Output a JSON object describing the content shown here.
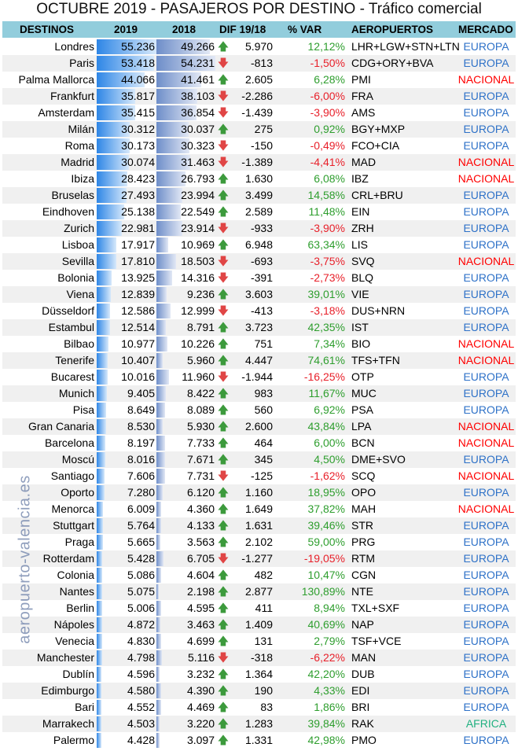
{
  "title": "OCTUBRE 2019 - PASAJEROS POR DESTINO - Tráfico comercial",
  "watermark": "aeropuerto-valencia.es",
  "headers": {
    "dest": "DESTINOS",
    "y2019": "2019",
    "y2018": "2018",
    "dif": "DIF 19/18",
    "pct": "% VAR",
    "apt": "AEROPUERTOS",
    "mkt": "MERCADO"
  },
  "colors": {
    "header_bg": "#92cddc",
    "positive": "#2e9e2e",
    "negative": "#e8202a",
    "europa": "#2f72c8",
    "nacional": "#ff0000",
    "africa": "#20b080"
  },
  "rows": [
    [
      "Londres",
      "55.236",
      "49.266",
      "5.970",
      "12,12%",
      "LHR+LGW+STN+LTN",
      "EUROPA"
    ],
    [
      "Paris",
      "53.418",
      "54.231",
      "-813",
      "-1,50%",
      "CDG+ORY+BVA",
      "EUROPA"
    ],
    [
      "Palma Mallorca",
      "44.066",
      "41.461",
      "2.605",
      "6,28%",
      "PMI",
      "NACIONAL"
    ],
    [
      "Frankfurt",
      "35.817",
      "38.103",
      "-2.286",
      "-6,00%",
      "FRA",
      "EUROPA"
    ],
    [
      "Amsterdam",
      "35.415",
      "36.854",
      "-1.439",
      "-3,90%",
      "AMS",
      "EUROPA"
    ],
    [
      "Milán",
      "30.312",
      "30.037",
      "275",
      "0,92%",
      "BGY+MXP",
      "EUROPA"
    ],
    [
      "Roma",
      "30.173",
      "30.323",
      "-150",
      "-0,49%",
      "FCO+CIA",
      "EUROPA"
    ],
    [
      "Madrid",
      "30.074",
      "31.463",
      "-1.389",
      "-4,41%",
      "MAD",
      "NACIONAL"
    ],
    [
      "Ibiza",
      "28.423",
      "26.793",
      "1.630",
      "6,08%",
      "IBZ",
      "NACIONAL"
    ],
    [
      "Bruselas",
      "27.493",
      "23.994",
      "3.499",
      "14,58%",
      "CRL+BRU",
      "EUROPA"
    ],
    [
      "Eindhoven",
      "25.138",
      "22.549",
      "2.589",
      "11,48%",
      "EIN",
      "EUROPA"
    ],
    [
      "Zurich",
      "22.981",
      "23.914",
      "-933",
      "-3,90%",
      "ZRH",
      "EUROPA"
    ],
    [
      "Lisboa",
      "17.917",
      "10.969",
      "6.948",
      "63,34%",
      "LIS",
      "EUROPA"
    ],
    [
      "Sevilla",
      "17.810",
      "18.503",
      "-693",
      "-3,75%",
      "SVQ",
      "NACIONAL"
    ],
    [
      "Bolonia",
      "13.925",
      "14.316",
      "-391",
      "-2,73%",
      "BLQ",
      "EUROPA"
    ],
    [
      "Viena",
      "12.839",
      "9.236",
      "3.603",
      "39,01%",
      "VIE",
      "EUROPA"
    ],
    [
      "Düsseldorf",
      "12.586",
      "12.999",
      "-413",
      "-3,18%",
      "DUS+NRN",
      "EUROPA"
    ],
    [
      "Estambul",
      "12.514",
      "8.791",
      "3.723",
      "42,35%",
      "IST",
      "EUROPA"
    ],
    [
      "Bilbao",
      "10.977",
      "10.226",
      "751",
      "7,34%",
      "BIO",
      "NACIONAL"
    ],
    [
      "Tenerife",
      "10.407",
      "5.960",
      "4.447",
      "74,61%",
      "TFS+TFN",
      "NACIONAL"
    ],
    [
      "Bucarest",
      "10.016",
      "11.960",
      "-1.944",
      "-16,25%",
      "OTP",
      "EUROPA"
    ],
    [
      "Munich",
      "9.405",
      "8.422",
      "983",
      "11,67%",
      "MUC",
      "EUROPA"
    ],
    [
      "Pisa",
      "8.649",
      "8.089",
      "560",
      "6,92%",
      "PSA",
      "EUROPA"
    ],
    [
      "Gran Canaria",
      "8.530",
      "5.930",
      "2.600",
      "43,84%",
      "LPA",
      "NACIONAL"
    ],
    [
      "Barcelona",
      "8.197",
      "7.733",
      "464",
      "6,00%",
      "BCN",
      "NACIONAL"
    ],
    [
      "Moscú",
      "8.016",
      "7.671",
      "345",
      "4,50%",
      "DME+SVO",
      "EUROPA"
    ],
    [
      "Santiago",
      "7.606",
      "7.731",
      "-125",
      "-1,62%",
      "SCQ",
      "NACIONAL"
    ],
    [
      "Oporto",
      "7.280",
      "6.120",
      "1.160",
      "18,95%",
      "OPO",
      "EUROPA"
    ],
    [
      "Menorca",
      "6.009",
      "4.360",
      "1.649",
      "37,82%",
      "MAH",
      "NACIONAL"
    ],
    [
      "Stuttgart",
      "5.764",
      "4.133",
      "1.631",
      "39,46%",
      "STR",
      "EUROPA"
    ],
    [
      "Praga",
      "5.665",
      "3.563",
      "2.102",
      "59,00%",
      "PRG",
      "EUROPA"
    ],
    [
      "Rotterdam",
      "5.428",
      "6.705",
      "-1.277",
      "-19,05%",
      "RTM",
      "EUROPA"
    ],
    [
      "Colonia",
      "5.086",
      "4.604",
      "482",
      "10,47%",
      "CGN",
      "EUROPA"
    ],
    [
      "Nantes",
      "5.075",
      "2.198",
      "2.877",
      "130,89%",
      "NTE",
      "EUROPA"
    ],
    [
      "Berlin",
      "5.006",
      "4.595",
      "411",
      "8,94%",
      "TXL+SXF",
      "EUROPA"
    ],
    [
      "Nápoles",
      "4.872",
      "3.463",
      "1.409",
      "40,69%",
      "NAP",
      "EUROPA"
    ],
    [
      "Venecia",
      "4.830",
      "4.699",
      "131",
      "2,79%",
      "TSF+VCE",
      "EUROPA"
    ],
    [
      "Manchester",
      "4.798",
      "5.116",
      "-318",
      "-6,22%",
      "MAN",
      "EUROPA"
    ],
    [
      "Dublín",
      "4.596",
      "3.232",
      "1.364",
      "42,20%",
      "DUB",
      "EUROPA"
    ],
    [
      "Edimburgo",
      "4.580",
      "4.390",
      "190",
      "4,33%",
      "EDI",
      "EUROPA"
    ],
    [
      "Bari",
      "4.552",
      "4.469",
      "83",
      "1,86%",
      "BRI",
      "EUROPA"
    ],
    [
      "Marrakech",
      "4.503",
      "3.220",
      "1.283",
      "39,84%",
      "RAK",
      "AFRICA"
    ],
    [
      "Palermo",
      "4.428",
      "3.097",
      "1.331",
      "42,98%",
      "PMO",
      "EUROPA"
    ]
  ]
}
